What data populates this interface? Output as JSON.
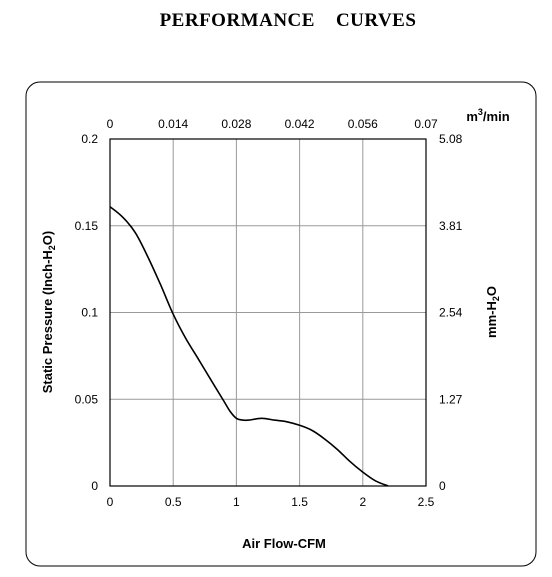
{
  "chart_data": {
    "type": "line",
    "title": "PERFORMANCE    CURVES",
    "xlabel": "Air Flow-CFM",
    "ylabel": "Static Pressure (Inch-H2O)",
    "ylabel_parts": [
      "Static Pressure (Inch-H",
      "2",
      "O)"
    ],
    "x2label_parts": [
      "m",
      "3",
      "/min"
    ],
    "y2label_parts": [
      "mm-H",
      "2",
      "O"
    ],
    "xlim": [
      0,
      2.5
    ],
    "ylim": [
      0,
      0.2
    ],
    "x_ticks": [
      "0",
      "0.5",
      "1",
      "1.5",
      "2",
      "2.5"
    ],
    "y_ticks": [
      "0",
      "0.05",
      "0.1",
      "0.15",
      "0.2"
    ],
    "x2_ticks": [
      "0",
      "0.014",
      "0.028",
      "0.042",
      "0.056",
      "0.07"
    ],
    "y2_ticks": [
      "0",
      "1.27",
      "2.54",
      "3.81",
      "5.08"
    ],
    "grid": true,
    "series": [
      {
        "x": [
          0,
          0.1,
          0.2,
          0.3,
          0.4,
          0.5,
          0.6,
          0.7,
          0.8,
          0.9,
          0.95,
          1.0,
          1.05,
          1.1,
          1.2,
          1.3,
          1.4,
          1.5,
          1.6,
          1.7,
          1.8,
          1.9,
          2.0,
          2.1,
          2.2
        ],
        "y": [
          0.161,
          0.155,
          0.146,
          0.132,
          0.116,
          0.099,
          0.085,
          0.073,
          0.061,
          0.049,
          0.043,
          0.039,
          0.038,
          0.038,
          0.039,
          0.038,
          0.037,
          0.035,
          0.032,
          0.027,
          0.021,
          0.014,
          0.008,
          0.003,
          0.0
        ]
      }
    ]
  }
}
